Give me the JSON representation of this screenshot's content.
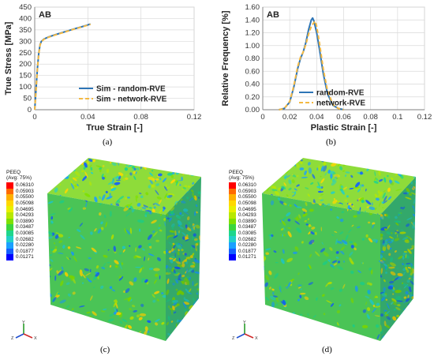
{
  "chart_data": [
    {
      "type": "line",
      "panel_label": "AB",
      "caption": "(a)",
      "xlabel": "True Strain [-]",
      "ylabel": "True Stress [MPa]",
      "xlim": [
        0,
        0.12
      ],
      "ylim": [
        0,
        450
      ],
      "xticks": [
        "0",
        "0.04",
        "0.08",
        "0.12"
      ],
      "xtick_values": [
        0,
        0.04,
        0.08,
        0.12
      ],
      "yticks": [
        "0",
        "50",
        "100",
        "150",
        "200",
        "250",
        "300",
        "350",
        "400",
        "450"
      ],
      "ytick_values": [
        0,
        50,
        100,
        150,
        200,
        250,
        300,
        350,
        400,
        450
      ],
      "grid": true,
      "legend_position": "bottom-right",
      "series": [
        {
          "name": "Sim - random-RVE",
          "color": "#2e75b6",
          "style": "solid",
          "x": [
            0,
            0.001,
            0.002,
            0.003,
            0.004,
            0.005,
            0.007,
            0.01,
            0.015,
            0.02,
            0.025,
            0.03,
            0.035,
            0.04,
            0.042
          ],
          "y": [
            0,
            90,
            180,
            245,
            285,
            300,
            310,
            318,
            328,
            337,
            346,
            355,
            363,
            372,
            376
          ]
        },
        {
          "name": "Sim - network-RVE",
          "color": "#f4b942",
          "style": "dashed",
          "x": [
            0,
            0.001,
            0.002,
            0.003,
            0.004,
            0.005,
            0.007,
            0.01,
            0.015,
            0.02,
            0.025,
            0.03,
            0.035,
            0.04,
            0.042
          ],
          "y": [
            0,
            88,
            178,
            243,
            283,
            299,
            309,
            317,
            327,
            336,
            345,
            354,
            362,
            371,
            375
          ]
        }
      ]
    },
    {
      "type": "line",
      "panel_label": "AB",
      "caption": "(b)",
      "xlabel": "Plastic Strain [-]",
      "ylabel": "Relative Frequency [%]",
      "xlim": [
        0,
        0.12
      ],
      "ylim": [
        0,
        1.6
      ],
      "xticks": [
        "0",
        "0.02",
        "0.04",
        "0.06",
        "0.08",
        "0.1",
        "0.12"
      ],
      "xtick_values": [
        0,
        0.02,
        0.04,
        0.06,
        0.08,
        0.1,
        0.12
      ],
      "yticks": [
        "0.00",
        "0.20",
        "0.40",
        "0.60",
        "0.80",
        "1.00",
        "1.20",
        "1.40",
        "1.60"
      ],
      "ytick_values": [
        0,
        0.2,
        0.4,
        0.6,
        0.8,
        1.0,
        1.2,
        1.4,
        1.6
      ],
      "grid": true,
      "legend_position": "right",
      "series": [
        {
          "name": "random-RVE",
          "color": "#2e75b6",
          "style": "solid",
          "x": [
            0.012,
            0.016,
            0.02,
            0.023,
            0.026,
            0.028,
            0.03,
            0.032,
            0.034,
            0.036,
            0.037,
            0.038,
            0.04,
            0.042,
            0.045,
            0.048,
            0.052,
            0.056,
            0.06
          ],
          "y": [
            0,
            0.02,
            0.12,
            0.35,
            0.65,
            0.8,
            0.9,
            1.05,
            1.25,
            1.4,
            1.43,
            1.38,
            1.2,
            0.95,
            0.55,
            0.25,
            0.07,
            0.02,
            0
          ]
        },
        {
          "name": "network-RVE",
          "color": "#f4b942",
          "style": "dashed",
          "x": [
            0.012,
            0.016,
            0.02,
            0.023,
            0.026,
            0.028,
            0.03,
            0.032,
            0.034,
            0.036,
            0.038,
            0.039,
            0.04,
            0.042,
            0.045,
            0.048,
            0.052,
            0.056,
            0.06
          ],
          "y": [
            0,
            0.02,
            0.13,
            0.37,
            0.68,
            0.82,
            0.9,
            1.02,
            1.18,
            1.3,
            1.36,
            1.38,
            1.3,
            1.05,
            0.62,
            0.3,
            0.08,
            0.02,
            0
          ]
        }
      ]
    }
  ],
  "contour_panels": [
    {
      "caption": "(c)",
      "legend_title": "PEEQ",
      "legend_subtitle": "(Avg: 75%)",
      "levels": [
        "0.06310",
        "0.05903",
        "0.05500",
        "0.05098",
        "0.04695",
        "0.04293",
        "0.03890",
        "0.03487",
        "0.03085",
        "0.02682",
        "0.02280",
        "0.01877",
        "0.01271"
      ],
      "level_colors": [
        "#ff0000",
        "#ff6a00",
        "#ffb000",
        "#ffd800",
        "#e8f000",
        "#b8e800",
        "#7fe000",
        "#3cd63c",
        "#1ed68c",
        "#22d0c8",
        "#1aa0ff",
        "#1460ff",
        "#0000ff"
      ],
      "triad": [
        "Y",
        "Z",
        "X"
      ]
    },
    {
      "caption": "(d)",
      "legend_title": "PEEQ",
      "legend_subtitle": "(Avg: 75%)",
      "levels": [
        "0.06310",
        "0.05903",
        "0.05500",
        "0.05098",
        "0.04695",
        "0.04293",
        "0.03890",
        "0.03487",
        "0.03085",
        "0.02682",
        "0.02280",
        "0.01877",
        "0.01271"
      ],
      "level_colors": [
        "#ff0000",
        "#ff6a00",
        "#ffb000",
        "#ffd800",
        "#e8f000",
        "#b8e800",
        "#7fe000",
        "#3cd63c",
        "#1ed68c",
        "#22d0c8",
        "#1aa0ff",
        "#1460ff",
        "#0000ff"
      ],
      "triad": [
        "Y",
        "Z",
        "X"
      ]
    }
  ]
}
